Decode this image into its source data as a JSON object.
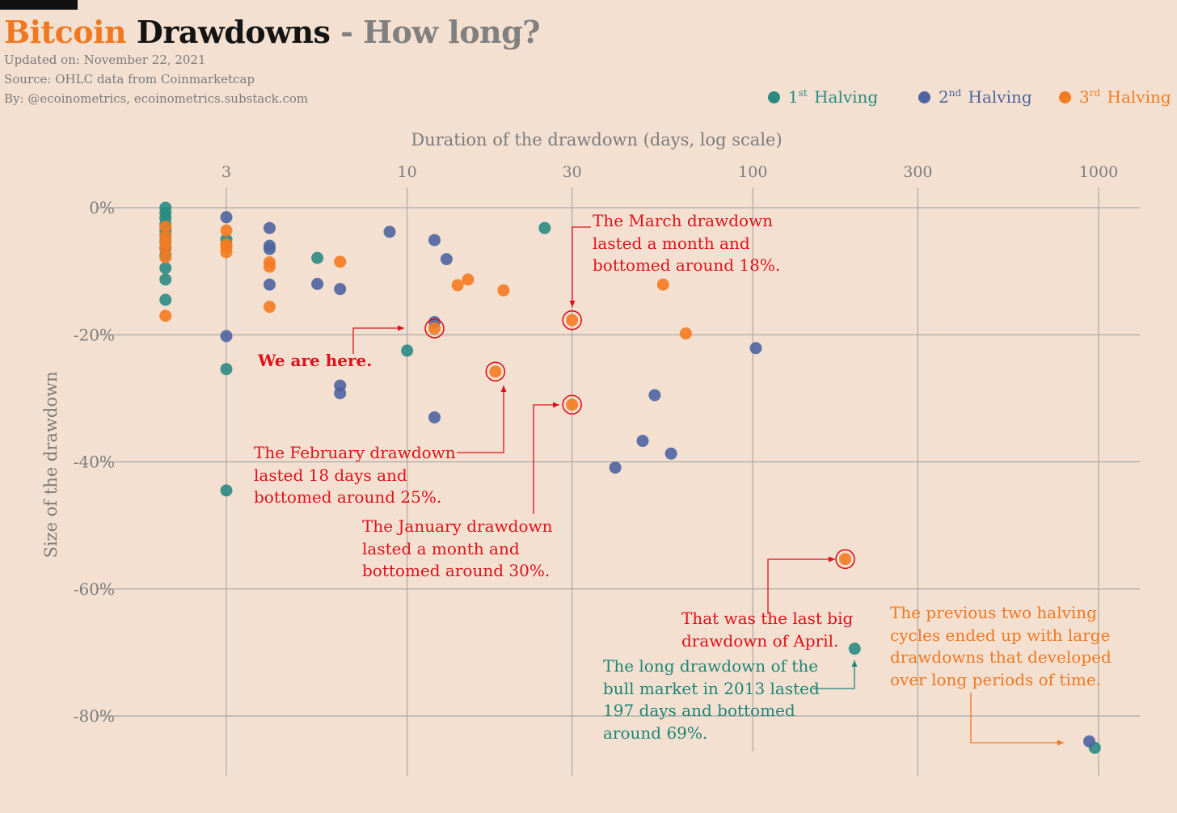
{
  "header": {
    "title_part1": "Bitcoin",
    "title_part2": " Drawdowns",
    "title_part3": " - How long?",
    "updated": "Updated on: November 22, 2021",
    "source": "Source: OHLC data from Coinmarketcap",
    "by": "By: @ecoinometrics, ecoinometrics.substack.com"
  },
  "legend": [
    {
      "pre": "1",
      "sup": "st",
      "post": "Halving",
      "color": "#2a8b82"
    },
    {
      "pre": "2",
      "sup": "nd",
      "post": "Halving",
      "color": "#4e64a0"
    },
    {
      "pre": "3",
      "sup": "rd",
      "post": "Halving",
      "color": "#f57b20"
    }
  ],
  "chart_data": {
    "type": "scatter",
    "xlabel": "Duration of the drawdown (days, log scale)",
    "ylabel": "Size of the drawdown",
    "x_scale": "log",
    "xlim": [
      1.6,
      1150
    ],
    "ylim": [
      -89,
      1
    ],
    "x_ticks": [
      {
        "value": 3,
        "label": "3"
      },
      {
        "value": 10,
        "label": "10"
      },
      {
        "value": 30,
        "label": "30"
      },
      {
        "value": 100,
        "label": "100"
      },
      {
        "value": 300,
        "label": "300"
      },
      {
        "value": 1000,
        "label": "1000"
      }
    ],
    "y_ticks": [
      {
        "value": 0,
        "label": "0%"
      },
      {
        "value": -20,
        "label": "-20%"
      },
      {
        "value": -40,
        "label": "-40%"
      },
      {
        "value": -60,
        "label": "-60%"
      },
      {
        "value": -80,
        "label": "-80%"
      }
    ],
    "grid": true,
    "legend_position": "top-right",
    "series": [
      {
        "name": "1st Halving",
        "color": "#2a8b82",
        "points": [
          [
            2,
            0
          ],
          [
            2,
            -0.8
          ],
          [
            2,
            -1.6
          ],
          [
            2,
            -2.6
          ],
          [
            2,
            -3.6
          ],
          [
            2,
            -4.3
          ],
          [
            2,
            -5.2
          ],
          [
            2,
            -6.3
          ],
          [
            2,
            -7.5
          ],
          [
            2,
            -9.5
          ],
          [
            2,
            -11.3
          ],
          [
            2,
            -14.5
          ],
          [
            3,
            -5
          ],
          [
            3,
            -25.4
          ],
          [
            3,
            -44.5
          ],
          [
            5.5,
            -7.9
          ],
          [
            10,
            -22.5
          ],
          [
            25,
            -3.2
          ],
          [
            197,
            -69.4
          ],
          [
            975,
            -85
          ]
        ]
      },
      {
        "name": "2nd Halving",
        "color": "#4e64a0",
        "points": [
          [
            3,
            -1.5
          ],
          [
            3,
            -20.2
          ],
          [
            4,
            -3.2
          ],
          [
            4,
            -6
          ],
          [
            4,
            -6.5
          ],
          [
            4,
            -12.1
          ],
          [
            5.5,
            -12
          ],
          [
            6.4,
            -12.8
          ],
          [
            6.4,
            -28
          ],
          [
            6.4,
            -29.2
          ],
          [
            8.9,
            -3.8
          ],
          [
            12,
            -5.1
          ],
          [
            12,
            -18
          ],
          [
            12,
            -33
          ],
          [
            13,
            -8.1
          ],
          [
            40,
            -40.9
          ],
          [
            48,
            -36.7
          ],
          [
            52,
            -29.5
          ],
          [
            58,
            -38.7
          ],
          [
            102,
            -22.1
          ],
          [
            940,
            -84
          ]
        ]
      },
      {
        "name": "3rd Halving",
        "color": "#f57b20",
        "points": [
          [
            2,
            -3
          ],
          [
            2,
            -4.5
          ],
          [
            2,
            -5.5
          ],
          [
            2,
            -6.5
          ],
          [
            2,
            -7.8
          ],
          [
            2,
            -17
          ],
          [
            3,
            -3.6
          ],
          [
            3,
            -5.8
          ],
          [
            3,
            -6.2
          ],
          [
            3,
            -7
          ],
          [
            4,
            -8.6
          ],
          [
            4,
            -9.3
          ],
          [
            4,
            -15.6
          ],
          [
            6.4,
            -8.5
          ],
          [
            12,
            -19
          ],
          [
            14,
            -12.2
          ],
          [
            15,
            -11.3
          ],
          [
            18,
            -25.8
          ],
          [
            19,
            -13
          ],
          [
            30,
            -31
          ],
          [
            30,
            -17.7
          ],
          [
            55,
            -12.1
          ],
          [
            64,
            -19.8
          ],
          [
            185,
            -55.3
          ]
        ]
      }
    ],
    "highlighted_points": [
      [
        12,
        -19
      ],
      [
        18,
        -25.8
      ],
      [
        30,
        -31
      ],
      [
        30,
        -17.7
      ],
      [
        185,
        -55.3
      ]
    ],
    "annotations": [
      {
        "id": "here",
        "text": "We are here.",
        "color": "#e0101a",
        "bold": true
      },
      {
        "id": "march",
        "text": "The March drawdown\nlasted a month and\nbottomed around 18%.",
        "color": "#e0101a"
      },
      {
        "id": "feb",
        "text": "The February drawdown\nlasted 18 days and\nbottomed around 25%.",
        "color": "#e0101a"
      },
      {
        "id": "jan",
        "text": "The January drawdown\nlasted a month and\nbottomed around 30%.",
        "color": "#e0101a"
      },
      {
        "id": "april",
        "text": "That was the last big\ndrawdown of April.",
        "color": "#e0101a"
      },
      {
        "id": "bull2013",
        "text": "The long drawdown of the\nbull market in 2013 lasted\n197 days and bottomed\naround 69%.",
        "color": "#1e8577"
      },
      {
        "id": "previous",
        "text": "The previous two halving\ncycles ended up with large\ndrawdowns that developed\nover long periods of time.",
        "color": "#f07820"
      }
    ]
  }
}
